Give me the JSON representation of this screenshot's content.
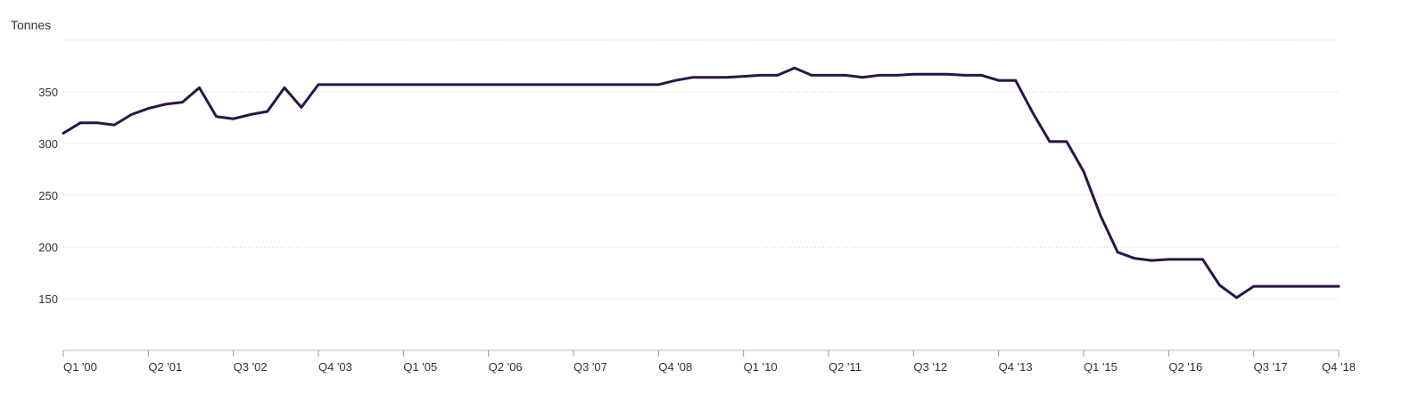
{
  "chart_data": {
    "type": "line",
    "title": "",
    "ylabel": "Tonnes",
    "xlabel": "",
    "ylim": [
      100,
      400
    ],
    "yticks": [
      150,
      200,
      250,
      300,
      350
    ],
    "grid": true,
    "legend": "none",
    "x_tick_labels": [
      "Q1 '00",
      "Q2 '01",
      "Q3 '02",
      "Q4 '03",
      "Q1 '05",
      "Q2 '06",
      "Q3 '07",
      "Q4 '08",
      "Q1 '10",
      "Q2 '11",
      "Q3 '12",
      "Q4 '13",
      "Q1 '15",
      "Q2 '16",
      "Q3 '17",
      "Q4 '18"
    ],
    "x": [
      "Q1 '00",
      "Q2 '00",
      "Q3 '00",
      "Q4 '00",
      "Q1 '01",
      "Q2 '01",
      "Q3 '01",
      "Q4 '01",
      "Q1 '02",
      "Q2 '02",
      "Q3 '02",
      "Q4 '02",
      "Q1 '03",
      "Q2 '03",
      "Q3 '03",
      "Q4 '03",
      "Q1 '04",
      "Q2 '04",
      "Q3 '04",
      "Q4 '04",
      "Q1 '05",
      "Q2 '05",
      "Q3 '05",
      "Q4 '05",
      "Q1 '06",
      "Q2 '06",
      "Q3 '06",
      "Q4 '06",
      "Q1 '07",
      "Q2 '07",
      "Q3 '07",
      "Q4 '07",
      "Q1 '08",
      "Q2 '08",
      "Q3 '08",
      "Q4 '08",
      "Q1 '09",
      "Q2 '09",
      "Q3 '09",
      "Q4 '09",
      "Q1 '10",
      "Q2 '10",
      "Q3 '10",
      "Q4 '10",
      "Q1 '11",
      "Q2 '11",
      "Q3 '11",
      "Q4 '11",
      "Q1 '12",
      "Q2 '12",
      "Q3 '12",
      "Q4 '12",
      "Q1 '13",
      "Q2 '13",
      "Q3 '13",
      "Q4 '13",
      "Q1 '14",
      "Q2 '14",
      "Q3 '14",
      "Q4 '14",
      "Q1 '15",
      "Q2 '15",
      "Q3 '15",
      "Q4 '15",
      "Q1 '16",
      "Q2 '16",
      "Q3 '16",
      "Q4 '16",
      "Q1 '17",
      "Q2 '17",
      "Q3 '17",
      "Q4 '17",
      "Q1 '18",
      "Q2 '18",
      "Q3 '18",
      "Q4 '18"
    ],
    "series": [
      {
        "color": "#2a1447",
        "values": [
          310,
          320,
          320,
          318,
          328,
          334,
          338,
          340,
          354,
          326,
          324,
          328,
          331,
          354,
          335,
          357,
          357,
          357,
          357,
          357,
          357,
          357,
          357,
          357,
          357,
          357,
          357,
          357,
          357,
          357,
          357,
          357,
          357,
          357,
          357,
          357,
          361,
          364,
          364,
          364,
          365,
          366,
          366,
          373,
          366,
          366,
          366,
          364,
          366,
          366,
          367,
          367,
          367,
          366,
          366,
          361,
          361,
          330,
          302,
          302,
          273,
          230,
          195,
          189,
          187,
          188,
          188,
          188,
          163,
          151,
          162,
          162,
          162,
          162,
          162,
          162
        ]
      }
    ]
  }
}
